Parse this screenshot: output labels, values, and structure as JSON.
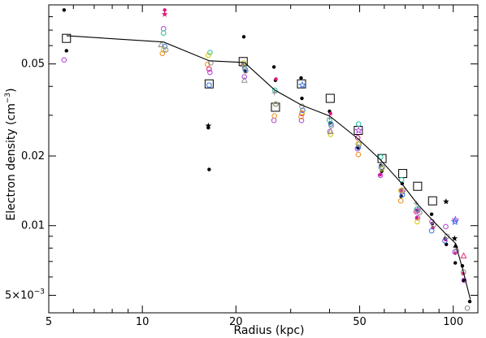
{
  "chart_data": {
    "type": "scatter",
    "x_scale": "log",
    "y_scale": "log",
    "xlim": [
      5,
      120
    ],
    "ylim": [
      0.0042,
      0.09
    ],
    "xlabel": "Radius (kpc)",
    "ylabel": "Electron density (cm",
    "ylabel_sup": "−3",
    "ylabel_close": ")",
    "grid": false,
    "x_ticks": [
      {
        "value": 5,
        "label": "5"
      },
      {
        "value": 10,
        "label": "10"
      },
      {
        "value": 20,
        "label": "20"
      },
      {
        "value": 50,
        "label": "50"
      },
      {
        "value": 100,
        "label": "100"
      }
    ],
    "y_ticks": [
      {
        "value": 0.005,
        "label": "5×10",
        "sup": "−3"
      },
      {
        "value": 0.01,
        "label": "0.01"
      },
      {
        "value": 0.02,
        "label": "0.02"
      },
      {
        "value": 0.05,
        "label": "0.05"
      }
    ],
    "profile_line": {
      "x": [
        5.7,
        11.7,
        16.4,
        21.3,
        26.7,
        32.5,
        40.0,
        49.3,
        58.0,
        68.3,
        76.7,
        85.5,
        94.7,
        101.5,
        107.5,
        113.5
      ],
      "y": [
        0.0662,
        0.0622,
        0.0516,
        0.0507,
        0.0385,
        0.0332,
        0.0298,
        0.0238,
        0.0194,
        0.0152,
        0.0124,
        0.0106,
        0.0092,
        0.0084,
        0.0064,
        0.0048
      ]
    },
    "series": [
      {
        "marker": "open-square",
        "color": "#000000",
        "x": [
          5.7,
          16.4,
          21.1,
          26.8,
          32.5,
          40.2,
          49.5,
          59.0,
          68.8,
          76.8,
          85.8
        ],
        "y": [
          0.0645,
          0.041,
          0.0512,
          0.0325,
          0.041,
          0.0355,
          0.0258,
          0.0195,
          0.0168,
          0.0148,
          0.0128
        ]
      },
      {
        "marker": "filled-circle",
        "color": "#000000",
        "x": [
          5.6,
          5.7,
          16.3,
          16.4,
          21.2,
          21.4,
          26.5,
          26.8,
          32.4,
          32.6,
          40.0,
          40.2,
          49.4,
          58.5,
          58.9,
          68.0,
          68.5,
          76.4,
          85.2,
          85.6,
          94.2,
          95.0,
          101.5,
          107.0,
          107.8,
          113.0
        ],
        "y": [
          0.0855,
          0.057,
          0.0265,
          0.0175,
          0.0655,
          0.0465,
          0.0485,
          0.0425,
          0.0435,
          0.0355,
          0.0312,
          0.0278,
          0.0217,
          0.0182,
          0.0172,
          0.0134,
          0.0152,
          0.0116,
          0.0112,
          0.0102,
          0.0088,
          0.0083,
          0.0069,
          0.0067,
          0.0058,
          0.0047
        ]
      },
      {
        "marker": "filled-star",
        "color": "#000000",
        "x": [
          16.3,
          94.8,
          101.0
        ],
        "y": [
          0.027,
          0.0127,
          0.0088
        ]
      },
      {
        "marker": "filled-circle",
        "color": "#e0147a",
        "x": [
          11.8,
          21.0,
          26.9,
          40.3,
          58.2,
          67.9,
          76.4,
          86.0,
          94.5,
          101.5,
          107.5
        ],
        "y": [
          0.0855,
          0.0495,
          0.043,
          0.0305,
          0.0166,
          0.0142,
          0.0108,
          0.0098,
          0.0087,
          0.0076,
          0.0062
        ]
      },
      {
        "marker": "open-circle",
        "color": "#e0147a",
        "x": [
          16.4,
          32.6,
          49.3,
          76.0
        ],
        "y": [
          0.0475,
          0.0305,
          0.024,
          0.0115
        ]
      },
      {
        "marker": "open-circle",
        "color": "#b040d8",
        "x": [
          5.6,
          11.7,
          16.5,
          21.3,
          26.5,
          32.5,
          40.1,
          49.2,
          58.3,
          68.4,
          76.8,
          85.4,
          94.6,
          101.2,
          108.3
        ],
        "y": [
          0.052,
          0.071,
          0.046,
          0.044,
          0.0285,
          0.0285,
          0.0255,
          0.0215,
          0.0165,
          0.014,
          0.0108,
          0.0104,
          0.0099,
          0.0077,
          0.0058
        ]
      },
      {
        "marker": "open-star",
        "color": "#b040d8",
        "x": [
          49.6,
          76.9,
          101.6
        ],
        "y": [
          0.0258,
          0.0117,
          0.0106
        ]
      },
      {
        "marker": "open-circle",
        "color": "#2f6fe0",
        "x": [
          11.8,
          16.4,
          21.4,
          32.8,
          40.4,
          49.5,
          58.6,
          68.6,
          85.2,
          94.0
        ],
        "y": [
          0.0595,
          0.0405,
          0.0475,
          0.0315,
          0.0275,
          0.0218,
          0.0178,
          0.0136,
          0.0095,
          0.0086
        ]
      },
      {
        "marker": "open-circle",
        "color": "#20c0a0",
        "x": [
          11.7,
          16.5,
          21.2,
          26.7,
          40.0,
          49.6,
          58.4,
          68.2,
          76.5
        ],
        "y": [
          0.068,
          0.056,
          0.0495,
          0.0385,
          0.0285,
          0.0275,
          0.0198,
          0.0158,
          0.0118
        ]
      },
      {
        "marker": "open-circle",
        "color": "#d6c800",
        "x": [
          11.7,
          16.3,
          21.2,
          26.8,
          32.6,
          40.3,
          49.4,
          58.9,
          67.9,
          76.6
        ],
        "y": [
          0.0575,
          0.0545,
          0.0505,
          0.0335,
          0.0308,
          0.0248,
          0.0226,
          0.0176,
          0.0142,
          0.0104
        ]
      },
      {
        "marker": "open-circle",
        "color": "#ee8c1c",
        "x": [
          11.6,
          16.2,
          26.6,
          32.4,
          49.5,
          67.8
        ],
        "y": [
          0.0555,
          0.0498,
          0.0298,
          0.0296,
          0.0203,
          0.0128
        ]
      },
      {
        "marker": "open-circle",
        "color": "#888888",
        "x": [
          11.9,
          16.6,
          21.5,
          26.9,
          32.6,
          40.5,
          49.8,
          59.2,
          68.9,
          78.0,
          86.5,
          95.5,
          102.5,
          107.9,
          111.0
        ],
        "y": [
          0.0575,
          0.0505,
          0.0467,
          0.0335,
          0.0328,
          0.027,
          0.0225,
          0.0179,
          0.0142,
          0.0114,
          0.0101,
          0.009,
          0.0078,
          0.0063,
          0.0044
        ]
      },
      {
        "marker": "plus",
        "color": "#888888",
        "x": [
          21.0,
          26.6,
          40.0,
          58.8,
          76.0
        ],
        "y": [
          0.0488,
          0.0375,
          0.0292,
          0.0188,
          0.0125
        ]
      },
      {
        "marker": "open-triangle",
        "color": "#888888",
        "x": [
          11.5,
          21.3,
          40.3
        ],
        "y": [
          0.0605,
          0.0425,
          0.0255
        ]
      },
      {
        "marker": "open-triangle",
        "color": "#e0147a",
        "x": [
          108.0
        ],
        "y": [
          0.0074
        ]
      },
      {
        "marker": "filled-triangle",
        "color": "#000000",
        "x": [
          101.8
        ],
        "y": [
          0.0082
        ]
      },
      {
        "marker": "filled-star",
        "color": "#e0147a",
        "x": [
          11.8
        ],
        "y": [
          0.082
        ]
      },
      {
        "marker": "open-star",
        "color": "#2f6fe0",
        "x": [
          32.7,
          101.2
        ],
        "y": [
          0.0405,
          0.0104
        ]
      }
    ]
  }
}
